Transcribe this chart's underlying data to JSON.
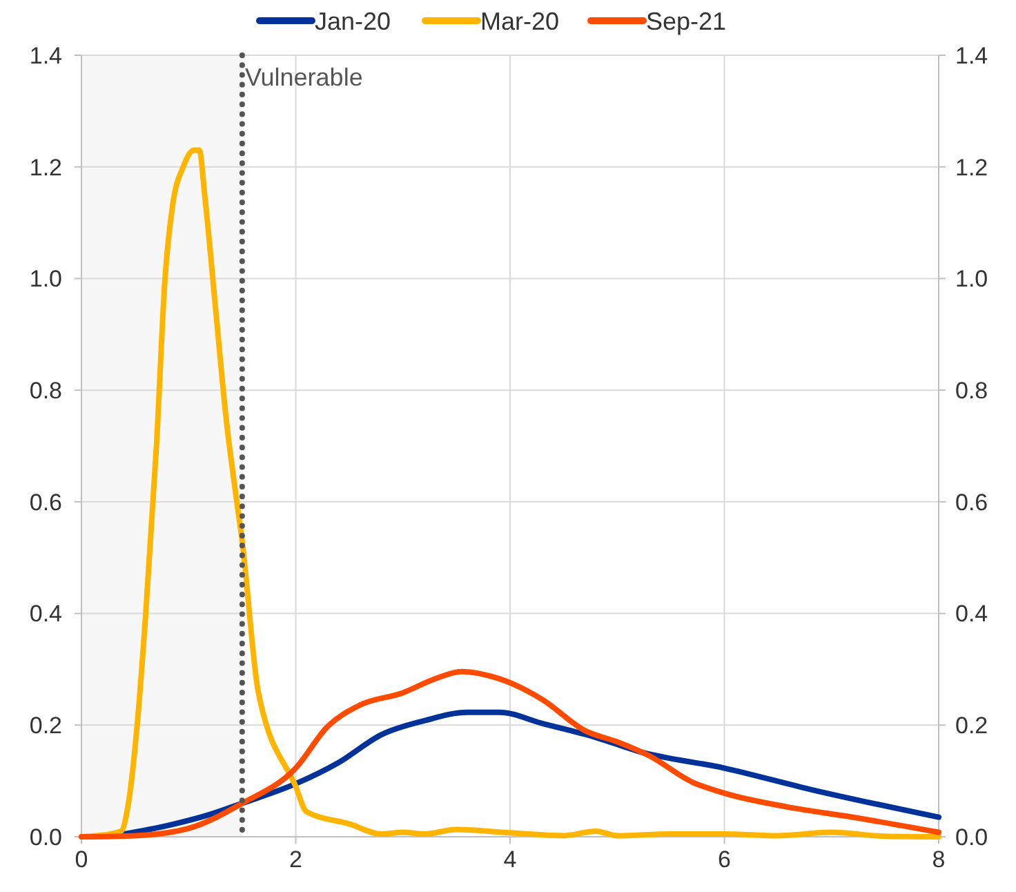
{
  "chart_data": {
    "type": "line",
    "legend": "top",
    "grid": true,
    "line_style": "solid",
    "xlim": [
      0,
      8
    ],
    "xticks": [
      0,
      2,
      4,
      6,
      8
    ],
    "ylim": [
      0,
      1.4
    ],
    "yticks": [
      {
        "value": 0,
        "label": "0.0"
      },
      {
        "value": 0.2,
        "label": "0.2"
      },
      {
        "value": 0.4,
        "label": "0.4"
      },
      {
        "value": 0.6,
        "label": "0.6"
      },
      {
        "value": 0.8,
        "label": "0.8"
      },
      {
        "value": 1,
        "label": "1.0"
      },
      {
        "value": 1.2,
        "label": "1.2"
      },
      {
        "value": 1.4,
        "label": "1.4"
      }
    ],
    "y2lim": [
      0,
      1.4
    ],
    "y2ticks": [
      {
        "value": 0,
        "label": "0.0"
      },
      {
        "value": 0.2,
        "label": "0.2"
      },
      {
        "value": 0.4,
        "label": "0.4"
      },
      {
        "value": 0.6,
        "label": "0.6"
      },
      {
        "value": 0.8,
        "label": "0.8"
      },
      {
        "value": 1,
        "label": "1.0"
      },
      {
        "value": 1.2,
        "label": "1.2"
      },
      {
        "value": 1.4,
        "label": "1.4"
      }
    ],
    "series": [
      {
        "name": "Jan-20",
        "color": "#003299",
        "x": [
          0.4,
          0.8,
          1.2,
          1.5,
          2,
          2.4,
          2.8,
          3.2,
          3.6,
          3.9,
          4.3,
          4.8,
          5.2,
          6,
          6.8,
          8
        ],
        "values": [
          0.005,
          0.02,
          0.04,
          0.06,
          0.095,
          0.133,
          0.183,
          0.208,
          0.223,
          0.223,
          0.203,
          0.178,
          0.153,
          0.123,
          0.085,
          0.035
        ]
      },
      {
        "name": "Mar-20",
        "color": "#ffb400",
        "x": [
          0,
          0.2,
          0.37,
          0.43,
          0.52,
          0.6,
          0.7,
          0.78,
          0.85,
          0.95,
          1.05,
          1.1,
          1.15,
          1.25,
          1.35,
          1.45,
          1.5,
          1.65,
          2,
          2.1,
          2.5,
          2.8,
          3,
          3.2,
          3.5,
          4,
          4.5,
          4.8,
          5,
          5.5,
          6,
          6.5,
          7,
          7.5,
          8
        ],
        "values": [
          0,
          0.003,
          0.01,
          0.05,
          0.2,
          0.4,
          0.7,
          1.0,
          1.13,
          1.2,
          1.23,
          1.23,
          1.15,
          0.95,
          0.75,
          0.6,
          0.53,
          0.26,
          0.09,
          0.045,
          0.023,
          0.005,
          0.008,
          0.005,
          0.013,
          0.007,
          0.002,
          0.01,
          0.002,
          0.005,
          0.005,
          0.002,
          0.008,
          0.001,
          0
        ]
      },
      {
        "name": "Sep-21",
        "color": "#ff4b00",
        "x": [
          0,
          0.5,
          1,
          1.5,
          2,
          2.3,
          2.6,
          3,
          3.3,
          3.55,
          3.9,
          4.3,
          4.7,
          5,
          5.3,
          5.7,
          6,
          6.6,
          7.2,
          8
        ],
        "values": [
          0,
          0.002,
          0.015,
          0.06,
          0.123,
          0.198,
          0.236,
          0.258,
          0.283,
          0.296,
          0.283,
          0.246,
          0.19,
          0.17,
          0.145,
          0.098,
          0.078,
          0.053,
          0.035,
          0.008
        ]
      }
    ],
    "ref_lines": [
      {
        "axis": "x",
        "value": 1.5,
        "label": "Vulnerable",
        "color": "#555555",
        "line_style": "dotted"
      }
    ],
    "bands": [
      {
        "axis": "x",
        "from": 0,
        "to": 1.5,
        "color": "#f7f7f7"
      }
    ]
  }
}
